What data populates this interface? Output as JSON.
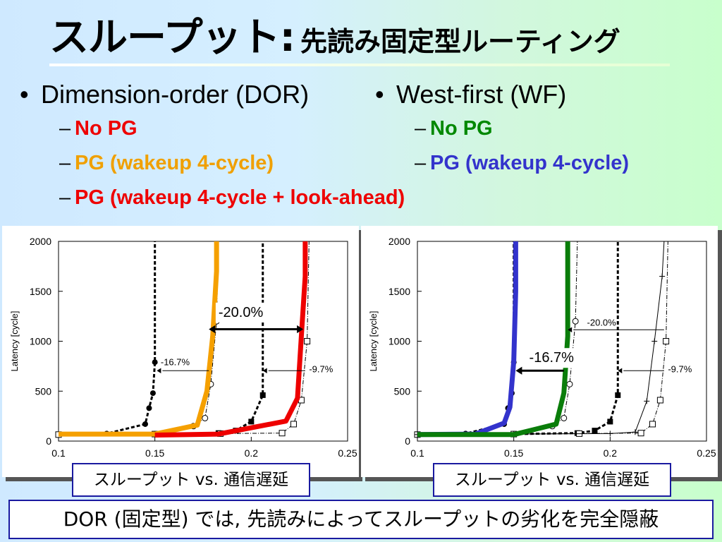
{
  "slide": {
    "title_main": "スループット:",
    "title_sub": "先読み固定型ルーティング",
    "summary": "DOR (固定型) では, 先読みによってスループットの劣化を完全隠蔽"
  },
  "left_list": {
    "heading": "Dimension-order (DOR)",
    "items": [
      {
        "label": "No PG",
        "color": "#ee0000"
      },
      {
        "label": "PG (wakeup 4-cycle)",
        "color": "#f0a000"
      },
      {
        "label": "PG (wakeup 4-cycle + look-ahead)",
        "color": "#ee0000"
      }
    ]
  },
  "right_list": {
    "heading": "West-first (WF)",
    "items": [
      {
        "label": "No PG",
        "color": "#008800"
      },
      {
        "label": "PG (wakeup 4-cycle)",
        "color": "#3333cc"
      }
    ]
  },
  "chart_data": [
    {
      "type": "line",
      "ylabel": "Latency [cycle]",
      "xlabel": "",
      "xlim": [
        0.1,
        0.25
      ],
      "ylim": [
        0,
        2000
      ],
      "x_ticks": [
        "0.1",
        "0.15",
        "0.2",
        "0.25"
      ],
      "y_ticks": [
        "0",
        "500",
        "1000",
        "1500",
        "2000"
      ],
      "caption": "スループット vs. 通信遅延",
      "annotations": [
        {
          "text": "-20.0%",
          "x": 0.177,
          "y": 1130
        },
        {
          "text": "-16.7%",
          "x": 0.153,
          "y": 790
        },
        {
          "text": "-9.7%",
          "x": 0.228,
          "y": 690
        }
      ],
      "series": [
        {
          "style": "black-dashed-circle",
          "color": "#000000",
          "x": [
            0.1,
            0.125,
            0.145,
            0.147,
            0.149,
            0.15,
            0.15
          ],
          "y": [
            65,
            75,
            170,
            330,
            480,
            790,
            2000
          ]
        },
        {
          "style": "black-dashed-square",
          "color": "#000000",
          "x": [
            0.1,
            0.15,
            0.183,
            0.192,
            0.2,
            0.206,
            0.206
          ],
          "y": [
            65,
            70,
            80,
            105,
            195,
            460,
            2000
          ]
        },
        {
          "style": "thin-open-circle",
          "color": "#000000",
          "x": [
            0.1,
            0.15,
            0.17,
            0.176,
            0.179,
            0.182,
            0.183
          ],
          "y": [
            65,
            70,
            150,
            230,
            570,
            1200,
            2000
          ]
        },
        {
          "style": "thin-open-square",
          "color": "#000000",
          "x": [
            0.1,
            0.15,
            0.184,
            0.216,
            0.222,
            0.226,
            0.229,
            0.23
          ],
          "y": [
            65,
            70,
            75,
            80,
            170,
            410,
            1000,
            2000
          ]
        },
        {
          "style": "orange-thick",
          "color": "#f5a000",
          "x": [
            0.1,
            0.15,
            0.172,
            0.177,
            0.18,
            0.182,
            0.182
          ],
          "y": [
            70,
            70,
            160,
            500,
            1050,
            1700,
            2000
          ]
        },
        {
          "style": "red-thick",
          "color": "#ee0000",
          "x": [
            0.15,
            0.183,
            0.218,
            0.224,
            0.226,
            0.228,
            0.228
          ],
          "y": [
            60,
            70,
            200,
            430,
            1050,
            1650,
            2000
          ]
        }
      ]
    },
    {
      "type": "line",
      "ylabel": "Latency [cycle]",
      "xlabel": "",
      "xlim": [
        0.1,
        0.25
      ],
      "ylim": [
        0,
        2000
      ],
      "x_ticks": [
        "0.1",
        "0.15",
        "0.2",
        "0.25"
      ],
      "y_ticks": [
        "0",
        "500",
        "1000",
        "1500",
        "2000"
      ],
      "caption": "スループット vs. 通信遅延",
      "annotations": [
        {
          "text": "-16.7%",
          "x": 0.167,
          "y": 800
        },
        {
          "text": "-20.0%",
          "x": 0.183,
          "y": 1150
        },
        {
          "text": "-9.7%",
          "x": 0.228,
          "y": 690
        }
      ],
      "series": [
        {
          "style": "black-dashed-circle",
          "color": "#000000",
          "x": [
            0.1,
            0.125,
            0.145,
            0.147,
            0.149,
            0.15,
            0.15
          ],
          "y": [
            65,
            75,
            170,
            330,
            480,
            790,
            2000
          ]
        },
        {
          "style": "black-dashed-square",
          "color": "#000000",
          "x": [
            0.1,
            0.15,
            0.183,
            0.192,
            0.2,
            0.204,
            0.204
          ],
          "y": [
            65,
            70,
            80,
            105,
            195,
            460,
            2000
          ]
        },
        {
          "style": "thin-open-circle",
          "color": "#000000",
          "x": [
            0.1,
            0.15,
            0.17,
            0.176,
            0.179,
            0.182,
            0.183
          ],
          "y": [
            65,
            70,
            150,
            230,
            570,
            1200,
            2000
          ]
        },
        {
          "style": "thin-open-square",
          "color": "#000000",
          "x": [
            0.1,
            0.15,
            0.184,
            0.216,
            0.222,
            0.226,
            0.229,
            0.23
          ],
          "y": [
            65,
            70,
            75,
            80,
            170,
            410,
            1000,
            2000
          ]
        },
        {
          "style": "thin-plus",
          "color": "#000000",
          "x": [
            0.1,
            0.15,
            0.2,
            0.213,
            0.219,
            0.223,
            0.227,
            0.228
          ],
          "y": [
            65,
            70,
            75,
            90,
            400,
            1000,
            1650,
            2000
          ]
        },
        {
          "style": "blue-thick",
          "color": "#3333cc",
          "x": [
            0.1,
            0.13,
            0.145,
            0.148,
            0.15,
            0.151,
            0.151
          ],
          "y": [
            65,
            70,
            180,
            340,
            800,
            1500,
            2000
          ]
        },
        {
          "style": "green-thick",
          "color": "#0a7d0a",
          "x": [
            0.1,
            0.15,
            0.172,
            0.176,
            0.178,
            0.178
          ],
          "y": [
            65,
            65,
            170,
            480,
            1050,
            2000
          ]
        }
      ]
    }
  ]
}
